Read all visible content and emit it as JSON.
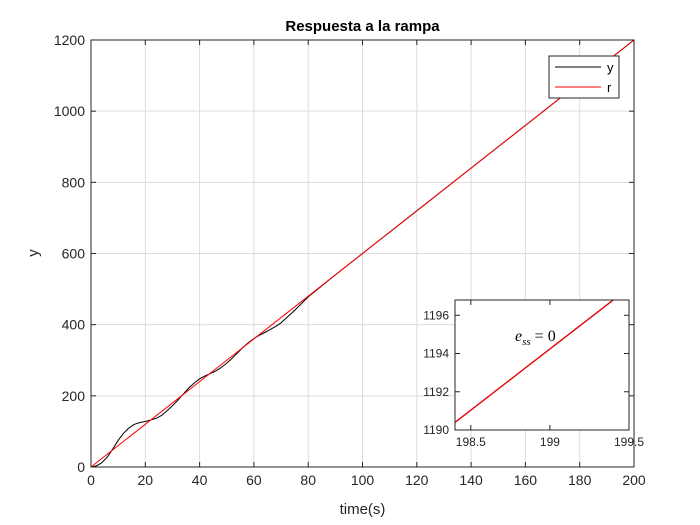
{
  "chart_data": [
    {
      "type": "line",
      "title": "Respuesta a la rampa",
      "xlabel": "time(s)",
      "ylabel": "y",
      "xlim": [
        0,
        200
      ],
      "ylim": [
        0,
        1200
      ],
      "xticks": [
        "0",
        "20",
        "40",
        "60",
        "80",
        "100",
        "120",
        "140",
        "160",
        "180",
        "200"
      ],
      "yticks": [
        "0",
        "200",
        "400",
        "600",
        "800",
        "1000",
        "1200"
      ],
      "grid": true,
      "legend_position": "top-right",
      "series": [
        {
          "name": "y",
          "color": "#000000",
          "x": [
            0,
            2,
            4,
            6,
            8,
            10,
            12,
            14,
            16,
            18,
            20,
            22,
            24,
            26,
            28,
            30,
            32,
            34,
            36,
            38,
            40,
            42,
            44,
            46,
            48,
            50,
            52,
            54,
            56,
            58,
            60,
            62,
            64,
            66,
            68,
            70,
            75,
            80,
            90,
            100,
            120,
            140,
            160,
            180,
            200
          ],
          "y": [
            0,
            3,
            12,
            28,
            50,
            75,
            95,
            110,
            120,
            125,
            128,
            132,
            137,
            145,
            158,
            172,
            188,
            205,
            222,
            236,
            248,
            256,
            263,
            270,
            280,
            292,
            306,
            321,
            336,
            350,
            361,
            370,
            378,
            386,
            395,
            405,
            440,
            478,
            540,
            600,
            720,
            840,
            960,
            1080,
            1200
          ]
        },
        {
          "name": "r",
          "color": "#ff0000",
          "x": [
            0,
            200
          ],
          "y": [
            0,
            1200
          ]
        }
      ]
    },
    {
      "type": "line",
      "title": "",
      "xlabel": "",
      "ylabel": "",
      "xlim": [
        198.4,
        199.5
      ],
      "ylim": [
        1190,
        1196.8
      ],
      "xticks": [
        "198.5",
        "199",
        "199.5"
      ],
      "yticks": [
        "1190",
        "1192",
        "1194",
        "1196"
      ],
      "annotation": "e_ss = 0",
      "series": [
        {
          "name": "y",
          "color": "#000000",
          "x": [
            198.4,
            199.4
          ],
          "y": [
            1190.4,
            1196.8
          ]
        },
        {
          "name": "r",
          "color": "#ff0000",
          "x": [
            198.4,
            199.4
          ],
          "y": [
            1190.4,
            1196.8
          ]
        }
      ]
    }
  ]
}
